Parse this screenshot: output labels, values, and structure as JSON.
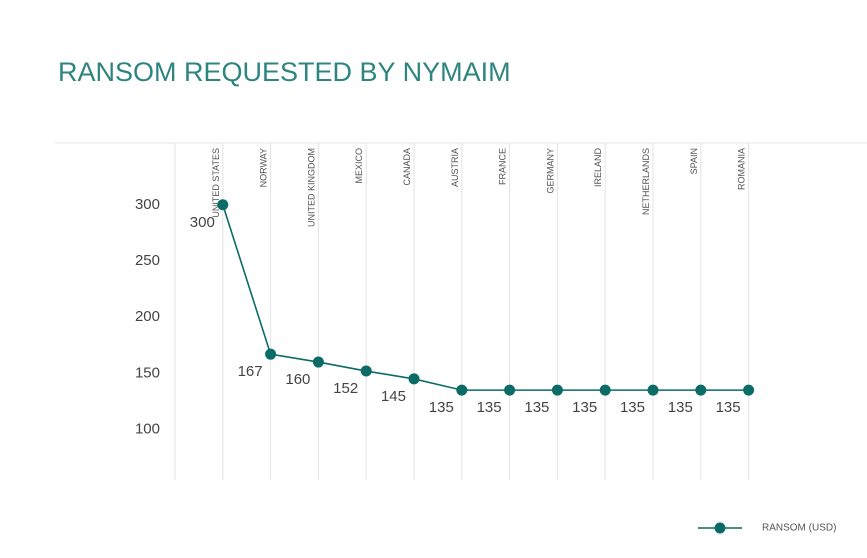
{
  "chart_data": {
    "type": "line",
    "title": "RANSOM REQUESTED BY NYMAIM",
    "categories": [
      "UNITED STATES",
      "NORWAY",
      "UNITED KINGDOM",
      "MEXICO",
      "CANADA",
      "AUSTRIA",
      "FRANCE",
      "GERMANY",
      "IRELAND",
      "NETHERLANDS",
      "SPAIN",
      "ROMANIA"
    ],
    "series": [
      {
        "name": "RANSOM (USD)",
        "color": "#0b6b66",
        "values": [
          300,
          167,
          160,
          152,
          145,
          135,
          135,
          135,
          135,
          135,
          135,
          135
        ]
      }
    ],
    "ylim": [
      55,
      355
    ],
    "yticks": [
      100,
      150,
      200,
      250,
      300
    ],
    "grid": true,
    "legend": "bottom-right"
  }
}
